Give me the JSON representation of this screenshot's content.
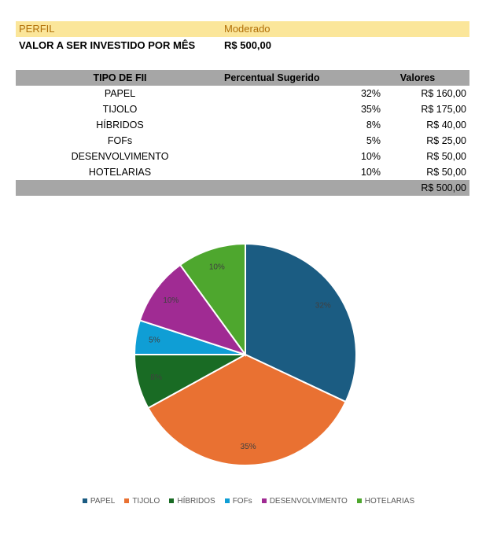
{
  "perfil": {
    "label": "PERFIL",
    "value": "Moderado"
  },
  "valor": {
    "label": "VALOR A SER INVESTIDO POR MÊS",
    "value": "R$ 500,00"
  },
  "table": {
    "headers": {
      "tipo": "TIPO DE FII",
      "percentual": "Percentual Sugerido",
      "valores": "Valores"
    },
    "rows": [
      {
        "tipo": "PAPEL",
        "percentual": "32%",
        "valor": "R$ 160,00"
      },
      {
        "tipo": "TIJOLO",
        "percentual": "35%",
        "valor": "R$ 175,00"
      },
      {
        "tipo": "HÍBRIDOS",
        "percentual": "8%",
        "valor": "R$ 40,00"
      },
      {
        "tipo": "FOFs",
        "percentual": "5%",
        "valor": "R$ 25,00"
      },
      {
        "tipo": "DESENVOLVIMENTO",
        "percentual": "10%",
        "valor": "R$ 50,00"
      },
      {
        "tipo": "HOTELARIAS",
        "percentual": "10%",
        "valor": "R$ 50,00"
      }
    ],
    "total": "R$ 500,00"
  },
  "chart_data": {
    "type": "pie",
    "categories": [
      "PAPEL",
      "TIJOLO",
      "HÍBRIDOS",
      "FOFs",
      "DESENVOLVIMENTO",
      "HOTELARIAS"
    ],
    "values": [
      32,
      35,
      8,
      5,
      10,
      10
    ],
    "labels": [
      "32%",
      "35%",
      "8%",
      "5%",
      "10%",
      "10%"
    ],
    "colors": [
      "#1b5c82",
      "#e97132",
      "#196b24",
      "#0f9ed5",
      "#a02b93",
      "#4ea72e"
    ],
    "legend": "bottom",
    "title": ""
  }
}
